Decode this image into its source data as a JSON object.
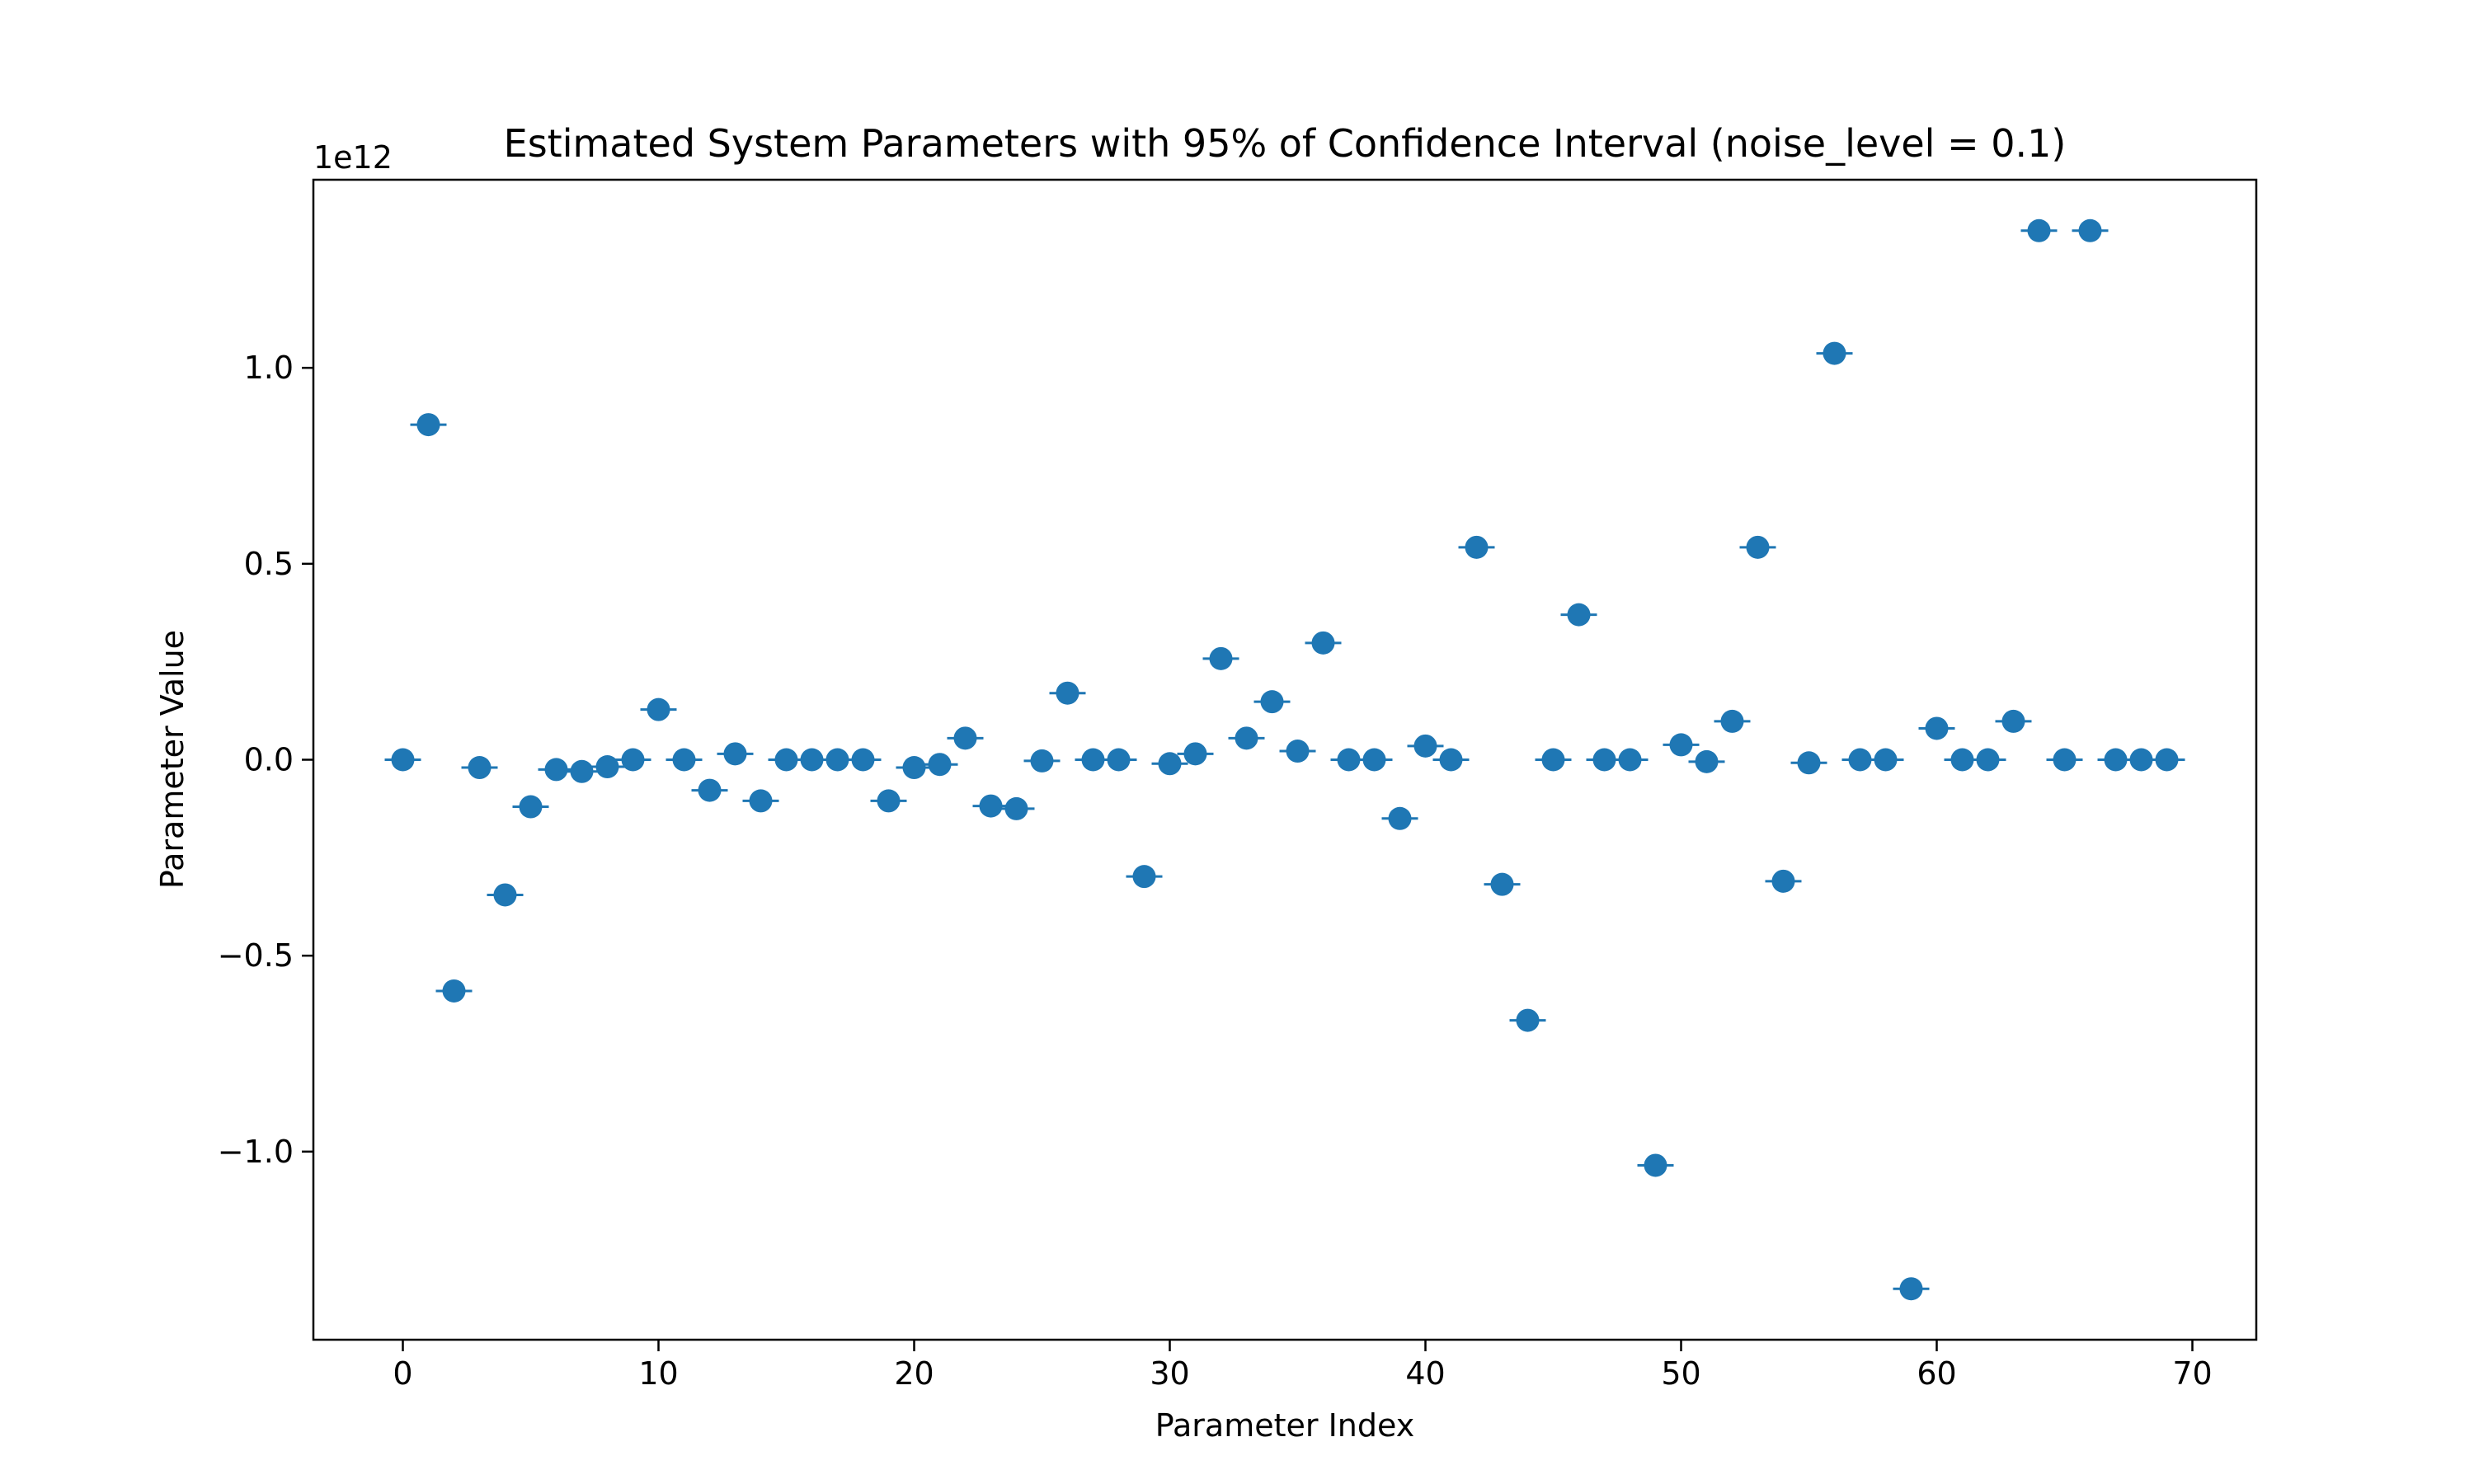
{
  "chart_data": {
    "type": "scatter",
    "title": "Estimated System Parameters with 95% of Confidence Interval (noise_level = 0.1)",
    "xlabel": "Parameter Index",
    "ylabel": "Parameter Value",
    "offset_text": "1e12",
    "scale": 1000000000000.0,
    "xlim": [
      -3.5,
      72.5
    ],
    "ylim": [
      -1480000000000.0,
      1480000000000.0
    ],
    "xticks": [
      0,
      10,
      20,
      30,
      40,
      50,
      60,
      70
    ],
    "yticks": [
      -1.0,
      -0.5,
      0.0,
      0.5,
      1.0
    ],
    "ytick_labels": [
      "−1.0",
      "−0.5",
      "0.0",
      "0.5",
      "1.0"
    ],
    "grid": false,
    "marker_color": "#1f77b4",
    "series": [
      {
        "x": [
          0,
          1,
          2,
          3,
          4,
          5,
          6,
          7,
          8,
          9,
          10,
          11,
          12,
          13,
          14,
          15,
          16,
          17,
          18,
          19,
          20,
          21,
          22,
          23,
          24,
          25,
          26,
          27,
          28,
          29,
          30,
          31,
          32,
          33,
          34,
          35,
          36,
          37,
          38,
          39,
          40,
          41,
          42,
          43,
          44,
          45,
          46,
          47,
          48,
          49,
          50,
          51,
          52,
          53,
          54,
          55,
          56,
          57,
          58,
          59,
          60,
          61,
          62,
          63,
          64,
          65,
          66,
          67,
          68,
          69
        ],
        "y": [
          0.0,
          0.855,
          -0.59,
          -0.02,
          -0.345,
          -0.12,
          -0.025,
          -0.03,
          -0.018,
          0.0,
          0.128,
          0.0,
          -0.078,
          0.015,
          -0.105,
          0.0,
          0.0,
          0.0,
          0.0,
          -0.105,
          -0.02,
          -0.012,
          0.055,
          -0.118,
          -0.125,
          -0.003,
          0.17,
          0.0,
          0.0,
          -0.298,
          -0.01,
          0.015,
          0.258,
          0.055,
          0.148,
          0.022,
          0.298,
          0.0,
          0.0,
          -0.15,
          0.035,
          0.0,
          0.542,
          -0.318,
          -0.665,
          0.0,
          0.37,
          0.0,
          0.0,
          -1.035,
          0.038,
          -0.005,
          0.098,
          0.542,
          -0.31,
          -0.008,
          1.037,
          0.0,
          0.0,
          -1.35,
          0.08,
          0.0,
          0.0,
          0.098,
          1.35,
          0.0,
          1.35,
          0.0,
          0.0,
          0.0
        ],
        "y_units": "1e12"
      }
    ]
  }
}
